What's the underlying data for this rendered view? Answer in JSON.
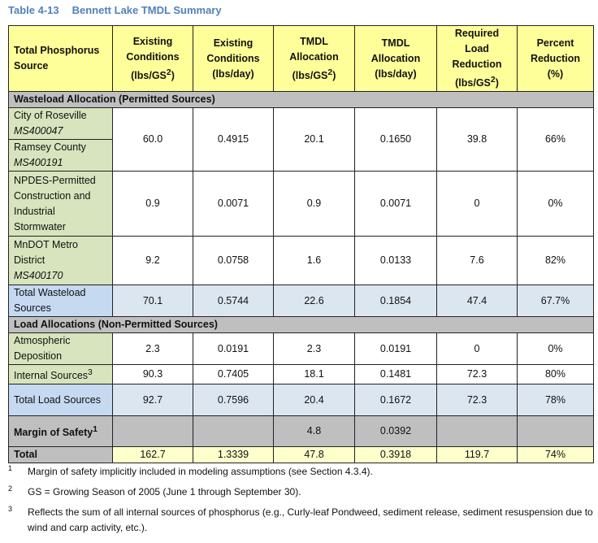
{
  "title": {
    "number": "Table 4-13",
    "text": "Bennett Lake TMDL Summary"
  },
  "headers": [
    "Total Phosphorus Source",
    "Existing Conditions (lbs/GS",
    "Existing Conditions (lbs/day)",
    "TMDL Allocation (lbs/GS",
    "TMDL Allocation (lbs/day)",
    "Required Load Reduction (lbs/GS",
    "Percent Reduction (%)"
  ],
  "sup2": "2",
  "close": ")",
  "sections": {
    "wla": "Wasteload Allocation (Permitted Sources)",
    "la": "Load Allocations (Non-Permitted Sources)"
  },
  "rows": {
    "roseville": {
      "name": "City of Roseville",
      "permit": "MS400047"
    },
    "ramsey": {
      "name": "Ramsey County",
      "permit": "MS400191"
    },
    "ms4": [
      "60.0",
      "0.4915",
      "20.1",
      "0.1650",
      "39.8",
      "66%"
    ],
    "npdes": {
      "name": "NPDES-Permitted Construction and Industrial Stormwater",
      "values": [
        "0.9",
        "0.0071",
        "0.9",
        "0.0071",
        "0",
        "0%"
      ]
    },
    "mndot": {
      "name": "MnDOT Metro District",
      "permit": "MS400170",
      "values": [
        "9.2",
        "0.0758",
        "1.6",
        "0.0133",
        "7.6",
        "82%"
      ]
    },
    "total_wla": {
      "name": "Total Wasteload Sources",
      "values": [
        "70.1",
        "0.5744",
        "22.6",
        "0.1854",
        "47.4",
        "67.7%"
      ]
    },
    "atmos": {
      "name": "Atmospheric Deposition",
      "values": [
        "2.3",
        "0.0191",
        "2.3",
        "0.0191",
        "0",
        "0%"
      ]
    },
    "internal": {
      "name": "Internal Sources",
      "sup": "3",
      "values": [
        "90.3",
        "0.7405",
        "18.1",
        "0.1481",
        "72.3",
        "80%"
      ]
    },
    "total_la": {
      "name": "Total Load Sources",
      "values": [
        "92.7",
        "0.7596",
        "20.4",
        "0.1672",
        "72.3",
        "78%"
      ]
    },
    "mos": {
      "name": "Margin of Safety",
      "sup": "1",
      "values": [
        "",
        "",
        "4.8",
        "0.0392",
        "",
        ""
      ]
    },
    "total": {
      "name": "Total",
      "values": [
        "162.7",
        "1.3339",
        "47.8",
        "0.3918",
        "119.7",
        "74%"
      ]
    }
  },
  "footnotes": [
    {
      "mark": "1",
      "text": "Margin of safety implicitly included in modeling assumptions (see Section 4.3.4)."
    },
    {
      "mark": "2",
      "text": "GS = Growing Season of 2005 (June 1 through September 30)."
    },
    {
      "mark": "3",
      "text": "Reflects the sum of all internal sources of phosphorus (e.g., Curly-leaf Pondweed, sediment release, sediment resuspension due to wind and carp activity, etc.)."
    }
  ]
}
